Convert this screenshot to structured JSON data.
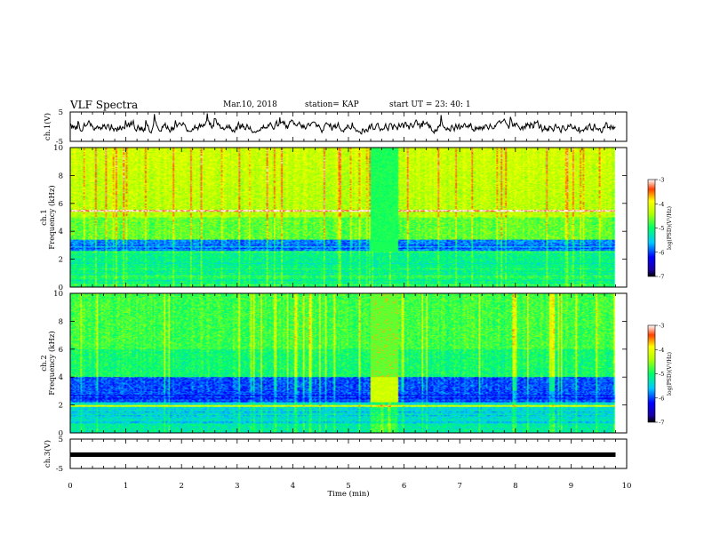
{
  "header": {
    "title": "VLF Spectra",
    "date": "Mar.10, 2018",
    "station": "station= KAP",
    "start": "start  UT  =   23: 40: 1"
  },
  "chart_data": [
    {
      "type": "line",
      "ylabel": "ch.1(V)",
      "ylim": [
        -5,
        5
      ],
      "yticks": [
        "5",
        "-5"
      ],
      "xlim": [
        0,
        10
      ],
      "description_free": true,
      "level": 0,
      "noise_amplitude": 1.5
    },
    {
      "type": "heatmap",
      "ylabel": "ch.1\nFrequency (kHz)",
      "ylabel_lines": [
        "ch.1",
        "Frequency (kHz)"
      ],
      "ylim": [
        0,
        10
      ],
      "yticks": [
        "0",
        "2",
        "4",
        "6",
        "8",
        "10"
      ],
      "xlim": [
        0,
        10
      ],
      "data_extent_min": 9.8,
      "colorbar": {
        "label": "log(PSD)(V²/Hz)",
        "range": [
          -7,
          -3
        ],
        "ticks": [
          "-3",
          "-4",
          "-5",
          "-6",
          "-7"
        ]
      },
      "features": {
        "quiet_interval_min": [
          5.4,
          5.9
        ],
        "horizontal_line_khz": 5.5
      }
    },
    {
      "type": "heatmap",
      "ylabel_lines": [
        "ch.2",
        "Frequency (kHz)"
      ],
      "ylim": [
        0,
        10
      ],
      "yticks": [
        "0",
        "2",
        "4",
        "6",
        "8",
        "10"
      ],
      "xlim": [
        0,
        10
      ],
      "data_extent_min": 9.8,
      "colorbar": {
        "label": "log(PSD)(V²/Hz)",
        "range": [
          -7,
          -3
        ],
        "ticks": [
          "-3",
          "-4",
          "-5",
          "-6",
          "-7"
        ]
      },
      "features": {
        "quiet_interval_min": [
          5.4,
          5.9
        ],
        "horizontal_line_khz": 1.9
      }
    },
    {
      "type": "line",
      "ylabel": "ch.3(V)",
      "ylim": [
        -5,
        5
      ],
      "yticks": [
        "5",
        "-5"
      ],
      "xlim": [
        0,
        10
      ],
      "level": 0,
      "xlabel": "Time  (min)",
      "xticks": [
        "0",
        "1",
        "2",
        "3",
        "4",
        "5",
        "6",
        "7",
        "8",
        "9",
        "10"
      ]
    }
  ]
}
